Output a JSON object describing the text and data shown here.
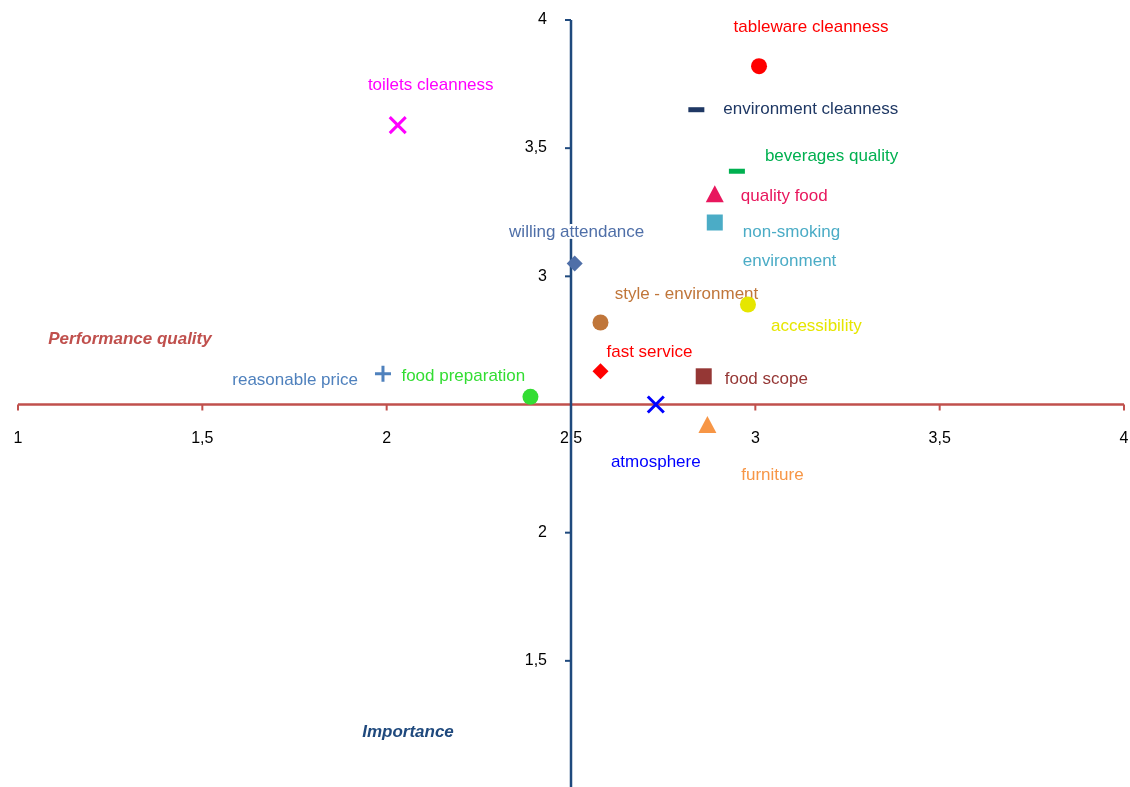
{
  "chart_data": {
    "type": "scatter",
    "xlabel": "Performance quality",
    "ylabel": "Importance",
    "xlim": [
      1,
      4
    ],
    "ylim": [
      1,
      4
    ],
    "xticks": [
      {
        "value": 1,
        "label": "1"
      },
      {
        "value": 1.5,
        "label": "1,5"
      },
      {
        "value": 2,
        "label": "2"
      },
      {
        "value": 2.5,
        "label": "2,5"
      },
      {
        "value": 3,
        "label": "3"
      },
      {
        "value": 3.5,
        "label": "3,5"
      },
      {
        "value": 4,
        "label": "4"
      }
    ],
    "yticks": [
      {
        "value": 1.5,
        "label": "1,5"
      },
      {
        "value": 2,
        "label": "2"
      },
      {
        "value": 3,
        "label": "3"
      },
      {
        "value": 3.5,
        "label": "3,5"
      },
      {
        "value": 4,
        "label": "4"
      }
    ],
    "series": [
      {
        "name": "tableware cleanness",
        "color": "#ff0000",
        "marker": "circle",
        "x": [
          3.01
        ],
        "values": [
          3.82
        ]
      },
      {
        "name": "environment cleanness",
        "color": "#1f3864",
        "x": [
          2.84
        ],
        "values": [
          3.65
        ]
      },
      {
        "name": "toilets cleanness",
        "color": "#ff00ff",
        "marker": "cross",
        "x": [
          2.03
        ],
        "values": [
          3.59
        ]
      },
      {
        "name": "beverages quality",
        "color": "#00b050",
        "x": [
          2.95
        ],
        "values": [
          3.41
        ]
      },
      {
        "name": "quality food",
        "color": "#e8175d",
        "marker": "triangle",
        "x": [
          2.89
        ],
        "values": [
          3.32
        ]
      },
      {
        "name": "non-smoking environment",
        "color": "#4bacc6",
        "marker": "square",
        "x": [
          2.89
        ],
        "values": [
          3.21
        ]
      },
      {
        "name": "willing attendance",
        "color": "#4f6fa8",
        "marker": "diamond",
        "x": [
          2.51
        ],
        "values": [
          3.05
        ]
      },
      {
        "name": "accessibility",
        "color": "#e6e600",
        "marker": "circle",
        "x": [
          2.98
        ],
        "values": [
          2.89
        ]
      },
      {
        "name": "style - environment",
        "color": "#c0763a",
        "marker": "circle",
        "x": [
          2.58
        ],
        "values": [
          2.82
        ]
      },
      {
        "name": "fast service",
        "color": "#ff0000",
        "marker": "diamond",
        "x": [
          2.58
        ],
        "values": [
          2.63
        ]
      },
      {
        "name": "reasonable price",
        "color": "#4f81bd",
        "marker": "plus",
        "x": [
          1.99
        ],
        "values": [
          2.62
        ]
      },
      {
        "name": "food preparation",
        "color": "#33dd33",
        "marker": "circle",
        "x": [
          2.39
        ],
        "values": [
          2.53
        ]
      },
      {
        "name": "food scope",
        "color": "#953735",
        "marker": "square",
        "x": [
          2.86
        ],
        "values": [
          2.61
        ]
      },
      {
        "name": "atmosphere",
        "color": "#0000ff",
        "marker": "cross",
        "x": [
          2.73
        ],
        "values": [
          2.5
        ]
      },
      {
        "name": "furniture",
        "color": "#f79646",
        "marker": "triangle",
        "x": [
          2.87
        ],
        "values": [
          2.42
        ]
      }
    ]
  }
}
